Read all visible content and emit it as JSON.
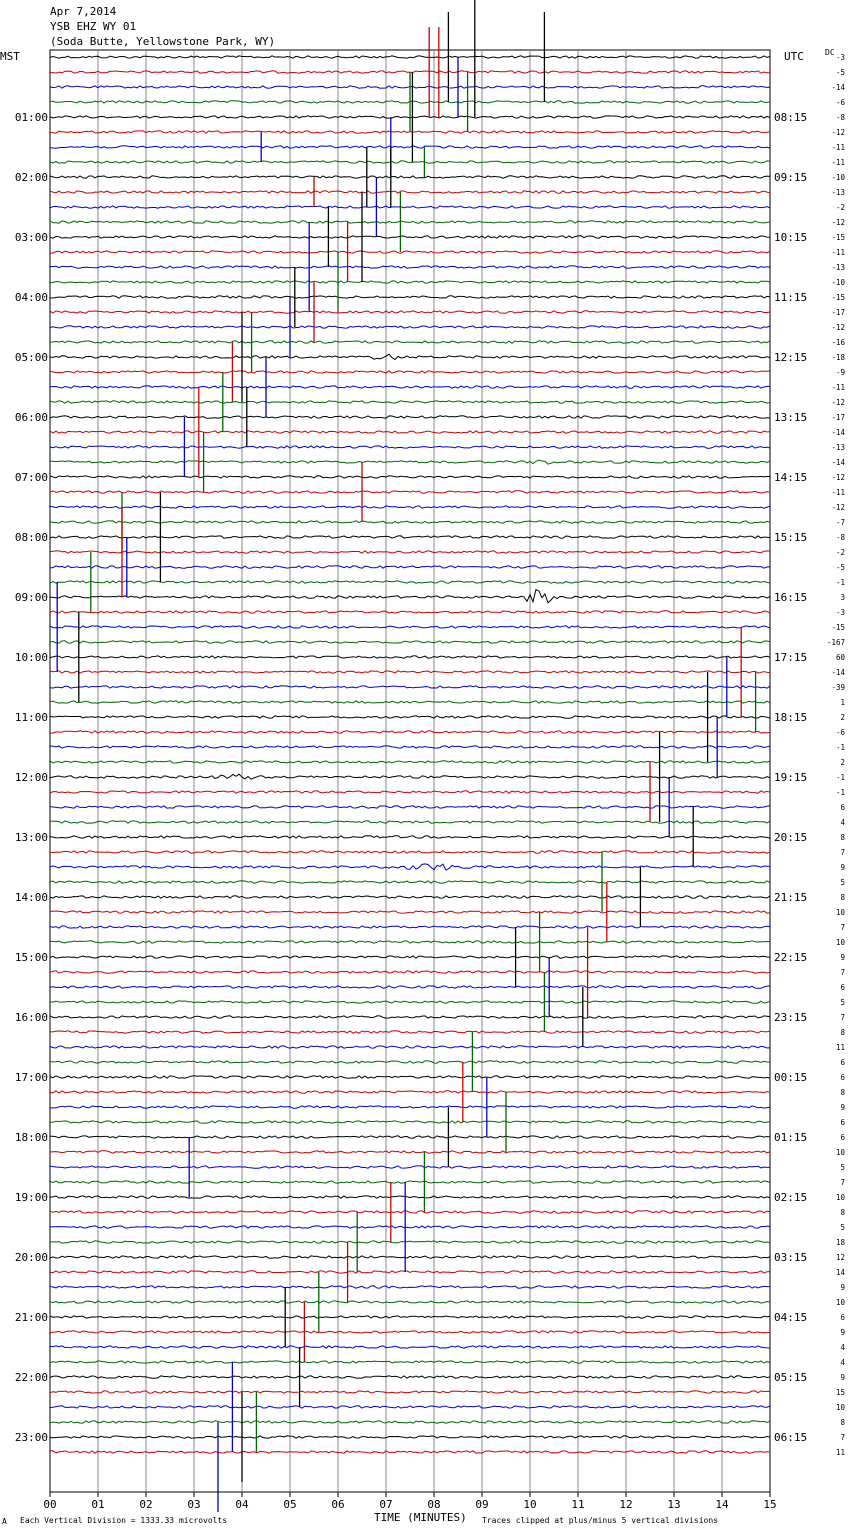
{
  "header": {
    "date": "Apr 7,2014",
    "station": "YSB EHZ WY 01",
    "location": "(Soda Butte, Yellowstone Park, WY)"
  },
  "left_axis_label": "MST",
  "right_axis_label": "UTC",
  "offset_header": "DC",
  "footer": {
    "scale": "Each Vertical Division = 1333.33 microvolts",
    "clip": "Traces clipped at plus/minus 5 vertical divisions",
    "mark": "A"
  },
  "chart_data": {
    "type": "line",
    "title": "YSB EHZ WY 01",
    "xlabel": "TIME (MINUTES)",
    "xlim": [
      0,
      15
    ],
    "x_ticks": [
      "00",
      "01",
      "02",
      "03",
      "04",
      "05",
      "06",
      "07",
      "08",
      "09",
      "10",
      "11",
      "12",
      "13",
      "14",
      "15"
    ],
    "rows_per_hour": 4,
    "trace_colors": [
      "#000000",
      "#cc0000",
      "#0000cc",
      "#006600"
    ],
    "left_time_labels": [
      "01:00",
      "02:00",
      "03:00",
      "04:00",
      "05:00",
      "06:00",
      "07:00",
      "08:00",
      "09:00",
      "10:00",
      "11:00",
      "12:00",
      "13:00",
      "14:00",
      "15:00",
      "16:00",
      "17:00",
      "18:00",
      "19:00",
      "20:00",
      "21:00",
      "22:00",
      "23:00"
    ],
    "right_time_labels": [
      "08:15",
      "09:15",
      "10:15",
      "11:15",
      "12:15",
      "13:15",
      "14:15",
      "15:15",
      "16:15",
      "17:15",
      "18:15",
      "19:15",
      "20:15",
      "21:15",
      "22:15",
      "23:15",
      "00:15",
      "01:15",
      "02:15",
      "03:15",
      "04:15",
      "05:15",
      "06:15"
    ],
    "dc_offsets": [
      "-3",
      "-5",
      "-14",
      "-6",
      "-8",
      "-12",
      "-11",
      "-11",
      "-10",
      "-13",
      "-2",
      "-12",
      "-15",
      "-11",
      "-13",
      "-10",
      "-15",
      "-17",
      "-12",
      "-16",
      "-18",
      "-9",
      "-11",
      "-12",
      "-17",
      "-14",
      "-13",
      "-14",
      "-12",
      "-11",
      "-12",
      "-7",
      "-8",
      "-2",
      "-5",
      "-1",
      "3",
      "-3",
      "-15",
      "-167",
      "60",
      "-14",
      "-39",
      "1",
      "2",
      "-6",
      "-1",
      "2",
      "-1",
      "-1",
      "6",
      "4",
      "8",
      "7",
      "9",
      "5",
      "8",
      "10",
      "7",
      "10",
      "9",
      "7",
      "6",
      "5",
      "7",
      "8",
      "11",
      "6",
      "6",
      "8",
      "9",
      "6",
      "6",
      "10",
      "5",
      "7",
      "10",
      "8",
      "5",
      "18",
      "12",
      "14",
      "9",
      "10",
      "6",
      "9",
      "4",
      "4",
      "9",
      "15",
      "10",
      "8",
      "7",
      "11"
    ],
    "events": [
      {
        "row": 0,
        "minute": 8.3,
        "amp": 3
      },
      {
        "row": 0,
        "minute": 8.85,
        "amp": 4
      },
      {
        "row": 0,
        "minute": 10.3,
        "amp": 3
      },
      {
        "row": 1,
        "minute": 7.9,
        "amp": 3
      },
      {
        "row": 1,
        "minute": 8.1,
        "amp": 3
      },
      {
        "row": 2,
        "minute": 8.5,
        "amp": 2
      },
      {
        "row": 3,
        "minute": 7.5,
        "amp": 2
      },
      {
        "row": 3,
        "minute": 8.7,
        "amp": 2
      },
      {
        "row": 4,
        "minute": 7.55,
        "amp": 3
      },
      {
        "row": 6,
        "minute": 4.4,
        "amp": 1
      },
      {
        "row": 6,
        "minute": 7.1,
        "amp": 2
      },
      {
        "row": 7,
        "minute": 7.8,
        "amp": 1
      },
      {
        "row": 8,
        "minute": 7.1,
        "amp": 2
      },
      {
        "row": 8,
        "minute": 6.6,
        "amp": 2
      },
      {
        "row": 9,
        "minute": 5.5,
        "amp": 1
      },
      {
        "row": 10,
        "minute": 6.8,
        "amp": 2
      },
      {
        "row": 11,
        "minute": 7.3,
        "amp": 2
      },
      {
        "row": 12,
        "minute": 6.5,
        "amp": 3
      },
      {
        "row": 12,
        "minute": 5.8,
        "amp": 2
      },
      {
        "row": 13,
        "minute": 6.2,
        "amp": 2
      },
      {
        "row": 14,
        "minute": 5.4,
        "amp": 3
      },
      {
        "row": 15,
        "minute": 6.0,
        "amp": 2
      },
      {
        "row": 16,
        "minute": 5.1,
        "amp": 2
      },
      {
        "row": 17,
        "minute": 5.5,
        "amp": 2
      },
      {
        "row": 18,
        "minute": 5.0,
        "amp": 2
      },
      {
        "row": 19,
        "minute": 4.2,
        "amp": 2
      },
      {
        "row": 20,
        "minute": 4.0,
        "amp": 3
      },
      {
        "row": 21,
        "minute": 3.8,
        "amp": 2
      },
      {
        "row": 22,
        "minute": 4.5,
        "amp": 2
      },
      {
        "row": 23,
        "minute": 3.6,
        "amp": 2
      },
      {
        "row": 24,
        "minute": 4.1,
        "amp": 2
      },
      {
        "row": 25,
        "minute": 3.1,
        "amp": 3
      },
      {
        "row": 26,
        "minute": 2.8,
        "amp": 2
      },
      {
        "row": 27,
        "minute": 3.2,
        "amp": 2
      },
      {
        "row": 29,
        "minute": 6.5,
        "amp": 2
      },
      {
        "row": 31,
        "minute": 1.5,
        "amp": 2
      },
      {
        "row": 32,
        "minute": 2.3,
        "amp": 3
      },
      {
        "row": 33,
        "minute": 1.5,
        "amp": 3
      },
      {
        "row": 34,
        "minute": 1.6,
        "amp": 2
      },
      {
        "row": 35,
        "minute": 0.85,
        "amp": 2
      },
      {
        "row": 38,
        "minute": 0.15,
        "amp": 3
      },
      {
        "row": 40,
        "minute": 0.6,
        "amp": 3
      },
      {
        "row": 41,
        "minute": 14.4,
        "amp": 3
      },
      {
        "row": 42,
        "minute": 14.1,
        "amp": 2
      },
      {
        "row": 43,
        "minute": 14.7,
        "amp": 2
      },
      {
        "row": 44,
        "minute": 13.7,
        "amp": 3
      },
      {
        "row": 46,
        "minute": 13.9,
        "amp": 2
      },
      {
        "row": 48,
        "minute": 12.7,
        "amp": 3
      },
      {
        "row": 49,
        "minute": 12.5,
        "amp": 2
      },
      {
        "row": 50,
        "minute": 12.9,
        "amp": 2
      },
      {
        "row": 52,
        "minute": 13.4,
        "amp": 2
      },
      {
        "row": 55,
        "minute": 11.5,
        "amp": 2
      },
      {
        "row": 56,
        "minute": 12.3,
        "amp": 2
      },
      {
        "row": 57,
        "minute": 11.6,
        "amp": 2
      },
      {
        "row": 59,
        "minute": 10.2,
        "amp": 2
      },
      {
        "row": 60,
        "minute": 9.7,
        "amp": 2
      },
      {
        "row": 61,
        "minute": 11.2,
        "amp": 3
      },
      {
        "row": 62,
        "minute": 10.4,
        "amp": 2
      },
      {
        "row": 63,
        "minute": 10.3,
        "amp": 2
      },
      {
        "row": 64,
        "minute": 11.1,
        "amp": 2
      },
      {
        "row": 67,
        "minute": 8.8,
        "amp": 2
      },
      {
        "row": 69,
        "minute": 8.6,
        "amp": 2
      },
      {
        "row": 70,
        "minute": 9.1,
        "amp": 2
      },
      {
        "row": 71,
        "minute": 9.5,
        "amp": 2
      },
      {
        "row": 72,
        "minute": 8.3,
        "amp": 2
      },
      {
        "row": 74,
        "minute": 2.9,
        "amp": 2
      },
      {
        "row": 75,
        "minute": 7.8,
        "amp": 2
      },
      {
        "row": 77,
        "minute": 7.1,
        "amp": 2
      },
      {
        "row": 78,
        "minute": 7.4,
        "amp": 3
      },
      {
        "row": 79,
        "minute": 6.4,
        "amp": 2
      },
      {
        "row": 81,
        "minute": 6.2,
        "amp": 2
      },
      {
        "row": 83,
        "minute": 5.6,
        "amp": 2
      },
      {
        "row": 84,
        "minute": 4.9,
        "amp": 2
      },
      {
        "row": 85,
        "minute": 5.3,
        "amp": 2
      },
      {
        "row": 88,
        "minute": 5.2,
        "amp": 2
      },
      {
        "row": 90,
        "minute": 3.8,
        "amp": 3
      },
      {
        "row": 91,
        "minute": 4.3,
        "amp": 2
      },
      {
        "row": 92,
        "minute": 4.0,
        "amp": 3
      },
      {
        "row": 94,
        "minute": 3.5,
        "amp": 3
      }
    ],
    "bursts": [
      {
        "row": 20,
        "start": 6.5,
        "end": 7.5,
        "amp": 0.5
      },
      {
        "row": 27,
        "start": 10.0,
        "end": 10.5,
        "amp": 0.6
      },
      {
        "row": 36,
        "start": 9.8,
        "end": 10.6,
        "amp": 1.8
      },
      {
        "row": 48,
        "start": 3.3,
        "end": 4.5,
        "amp": 0.5
      },
      {
        "row": 54,
        "start": 7.0,
        "end": 9.0,
        "amp": 0.6
      }
    ]
  }
}
